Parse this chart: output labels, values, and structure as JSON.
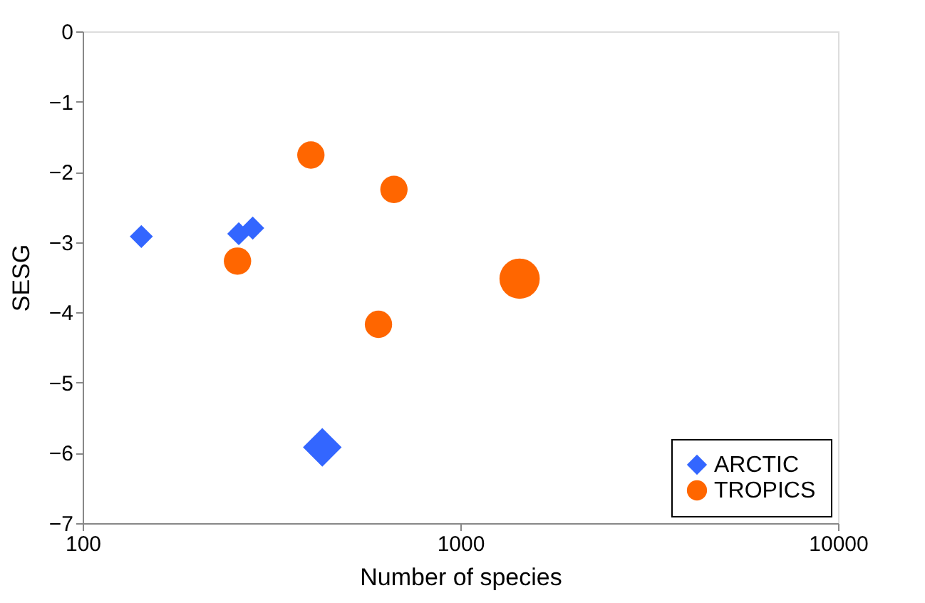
{
  "chart_data": {
    "type": "bubble",
    "xlabel": "Number of species",
    "ylabel": "SESG",
    "log": "x",
    "xlim": [
      100,
      10000
    ],
    "xticks": [
      100,
      1000,
      10000
    ],
    "ylim": [
      -7,
      0
    ],
    "yticks": [
      -7,
      -6,
      -5,
      -4,
      -3,
      -2,
      -1,
      0
    ],
    "grid": false,
    "legend": "bottom right",
    "series": [
      {
        "name": "ARCTIC",
        "color": "#3366ff",
        "marker": "diamond",
        "x": [
          143,
          259,
          282,
          431
        ],
        "values": [
          -2.92,
          -2.88,
          -2.8,
          -5.92
        ],
        "sizes": [
          0.21,
          0.21,
          0.21,
          0.59
        ]
      },
      {
        "name": "TROPICS",
        "color": "#ff6600",
        "marker": "circle",
        "x": [
          257,
          402,
          667,
          607,
          1435
        ],
        "values": [
          -3.27,
          -1.76,
          -2.25,
          -4.17,
          -3.52
        ],
        "sizes": [
          0.46,
          0.46,
          0.46,
          0.46,
          1
        ]
      }
    ]
  }
}
